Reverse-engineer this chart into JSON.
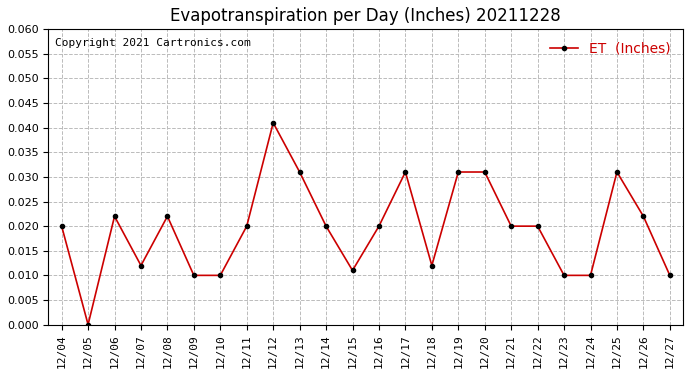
{
  "title": "Evapotranspiration per Day (Inches) 20211228",
  "copyright": "Copyright 2021 Cartronics.com",
  "legend_label": "ET  (Inches)",
  "dates": [
    "12/04",
    "12/05",
    "12/06",
    "12/07",
    "12/08",
    "12/09",
    "12/10",
    "12/11",
    "12/12",
    "12/13",
    "12/14",
    "12/15",
    "12/16",
    "12/17",
    "12/18",
    "12/19",
    "12/20",
    "12/21",
    "12/22",
    "12/23",
    "12/24",
    "12/25",
    "12/26",
    "12/27"
  ],
  "values": [
    0.02,
    0.0,
    0.022,
    0.012,
    0.022,
    0.01,
    0.01,
    0.02,
    0.041,
    0.031,
    0.02,
    0.011,
    0.02,
    0.031,
    0.012,
    0.031,
    0.031,
    0.02,
    0.02,
    0.01,
    0.01,
    0.031,
    0.022,
    0.01
  ],
  "line_color": "#cc0000",
  "marker_color": "#000000",
  "background_color": "#ffffff",
  "grid_color": "#bbbbbb",
  "ylim": [
    0.0,
    0.06
  ],
  "ytick_step": 0.005,
  "title_fontsize": 12,
  "copyright_fontsize": 8,
  "legend_fontsize": 10,
  "tick_fontsize": 8
}
